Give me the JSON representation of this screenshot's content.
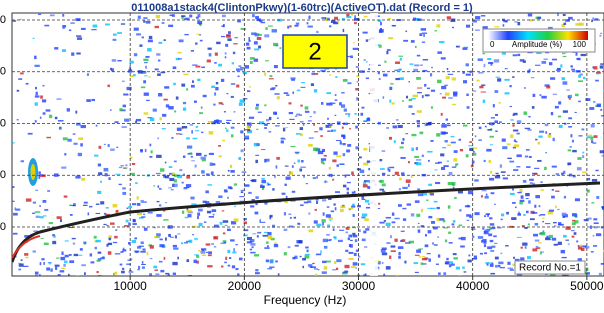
{
  "chart_data": {
    "type": "dispersion-image",
    "title": "011008a1stack4(ClintonPkwy)(1-60trc)(ActiveOT).dat (Record = 1)",
    "x_label": "Frequency (Hz)",
    "xlim": [
      -350,
      51500
    ],
    "xticks": [
      10000,
      20000,
      30000,
      40000,
      {
        "value": 50000,
        "label": "50000"
      }
    ],
    "ytick_labels": [
      "0",
      "0",
      "0",
      "0",
      "0"
    ],
    "colorbar": {
      "min_label": "0",
      "label": "Amplitude (%)",
      "max_label": "100"
    },
    "annotation": "2",
    "record_label": "Record No.=1",
    "grid": true
  }
}
